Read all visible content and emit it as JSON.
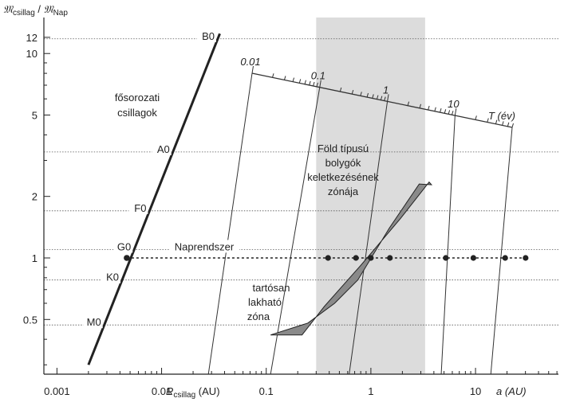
{
  "chart_data": {
    "type": "scatter",
    "x_axis": {
      "scale": "log",
      "range": [
        0.00075,
        62
      ],
      "ticks": [
        0.001,
        0.01,
        0.1,
        1,
        10
      ],
      "tick_labels": [
        "0.001",
        "0.01",
        "0.1",
        "1",
        "10"
      ],
      "label_left_main": "R",
      "label_left_sub": "csillag",
      "label_left_unit": "(AU)",
      "label_right": "a (AU)"
    },
    "y_axis": {
      "scale": "log",
      "range": [
        0.27,
        15
      ],
      "ticks": [
        0.5,
        1,
        2,
        5,
        10
      ],
      "tick_labels": [
        "0.5",
        "1",
        "2",
        "5",
        "10",
        "12"
      ],
      "extra_tick": 12,
      "label_main_num": "𝔐",
      "label_sub_num": "csillag",
      "label_sep": "/",
      "label_main_den": "𝔐",
      "label_sub_den": "Nap"
    },
    "grid": "horizontal dotted lines at spectral types",
    "spectral_types": [
      {
        "label": "B0",
        "mass": 11.8
      },
      {
        "label": "A0",
        "mass": 3.3
      },
      {
        "label": "F0",
        "mass": 1.7
      },
      {
        "label": "G0",
        "mass": 1.1
      },
      {
        "label": "K0",
        "mass": 0.78
      },
      {
        "label": "M0",
        "mass": 0.47
      }
    ],
    "main_sequence": {
      "label_line1": "fősorozati",
      "label_line2": "csillagok",
      "points": [
        [
          0.002,
          0.3
        ],
        [
          0.036,
          12.5
        ]
      ]
    },
    "sun_line": {
      "label": "Naprendszer",
      "mass": 1.0,
      "sun_radius": 0.00465,
      "planets_a": [
        0.39,
        0.72,
        1.0,
        1.52,
        5.2,
        9.54,
        19.2,
        30.1
      ]
    },
    "terrestrial_zone": {
      "label": [
        "Föld típusú",
        "bolygók",
        "keletkezésének",
        "zónája"
      ],
      "a_range": [
        0.3,
        3.3
      ]
    },
    "habitable_zone": {
      "label": [
        "tartósan",
        "lakható",
        "zóna"
      ],
      "polygon": [
        [
          0.11,
          0.42
        ],
        [
          0.22,
          0.42
        ],
        [
          0.36,
          0.58
        ],
        [
          0.8,
          0.92
        ],
        [
          1.9,
          1.55
        ],
        [
          3.6,
          2.35
        ],
        [
          3.8,
          2.28
        ],
        [
          2.9,
          2.3
        ],
        [
          1.5,
          1.4
        ],
        [
          0.75,
          0.78
        ],
        [
          0.45,
          0.6
        ],
        [
          0.25,
          0.48
        ]
      ]
    },
    "period_axis": {
      "label": "T (év)",
      "tick_labels": [
        "0.01",
        "0.1",
        "1",
        "10"
      ],
      "ticks": [
        0.01,
        0.1,
        1,
        10
      ],
      "range": [
        0.01,
        70
      ],
      "lines": [
        {
          "T": 0.01,
          "a_bottom": 0.028
        },
        {
          "T": 0.1,
          "a_bottom": 0.11
        },
        {
          "T": 1,
          "a_bottom": 0.62
        },
        {
          "T": 10,
          "a_bottom": 4.7
        },
        {
          "T": 70,
          "a_bottom": 14
        }
      ]
    }
  }
}
